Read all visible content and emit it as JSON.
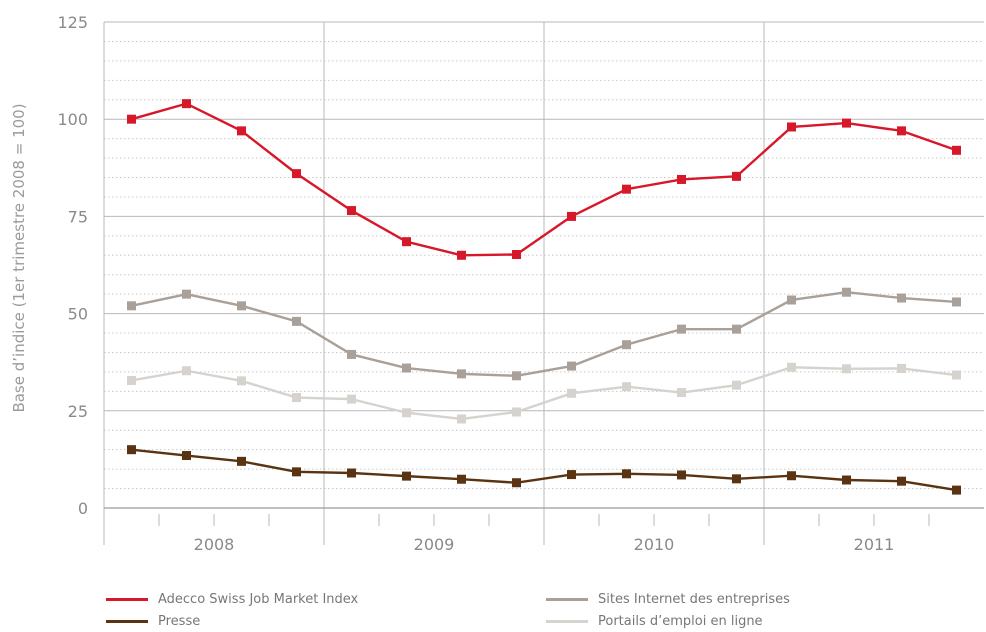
{
  "chart_data": {
    "type": "line",
    "ylabel": "Base d’indice (1er trimestre 2008 = 100)",
    "ylim": [
      0,
      125
    ],
    "yticks": [
      0,
      25,
      50,
      75,
      100,
      125
    ],
    "grid": true,
    "x_groups": [
      "2008",
      "2009",
      "2010",
      "2011"
    ],
    "x": [
      "2008 Q1",
      "2008 Q2",
      "2008 Q3",
      "2008 Q4",
      "2009 Q1",
      "2009 Q2",
      "2009 Q3",
      "2009 Q4",
      "2010 Q1",
      "2010 Q2",
      "2010 Q3",
      "2010 Q4",
      "2011 Q1",
      "2011 Q2",
      "2011 Q3",
      "2011 Q4"
    ],
    "series": [
      {
        "name": "Adecco Swiss Job Market Index",
        "color": "#d7182a",
        "values": [
          100,
          104,
          97,
          86,
          76.5,
          68.5,
          65,
          65.2,
          75,
          82,
          84.5,
          85.3,
          98,
          99,
          97,
          92
        ]
      },
      {
        "name": "Sites Internet des entreprises",
        "color": "#a8a099",
        "values": [
          52,
          55,
          52,
          48,
          39.5,
          36,
          34.5,
          34,
          36.5,
          42,
          46,
          46,
          53.5,
          55.5,
          54,
          53
        ]
      },
      {
        "name": "Portails d’emploi en ligne",
        "color": "#d6d3cf",
        "values": [
          32.8,
          35.3,
          32.7,
          28.4,
          28,
          24.5,
          22.9,
          24.7,
          29.5,
          31.2,
          29.7,
          31.6,
          36.2,
          35.8,
          35.9,
          34.2
        ]
      },
      {
        "name": "Presse",
        "color": "#5a3412",
        "values": [
          15,
          13.5,
          12,
          9.3,
          9,
          8.2,
          7.4,
          6.5,
          8.6,
          8.8,
          8.5,
          7.5,
          8.3,
          7.2,
          6.9,
          4.6
        ]
      }
    ],
    "legend": [
      {
        "label": "Adecco Swiss Job Market Index",
        "color": "#d7182a"
      },
      {
        "label": "Sites Internet des entreprises",
        "color": "#a8a099"
      },
      {
        "label": "Presse",
        "color": "#5a3412"
      },
      {
        "label": "Portails d’emploi en ligne",
        "color": "#d6d3cf"
      }
    ]
  }
}
